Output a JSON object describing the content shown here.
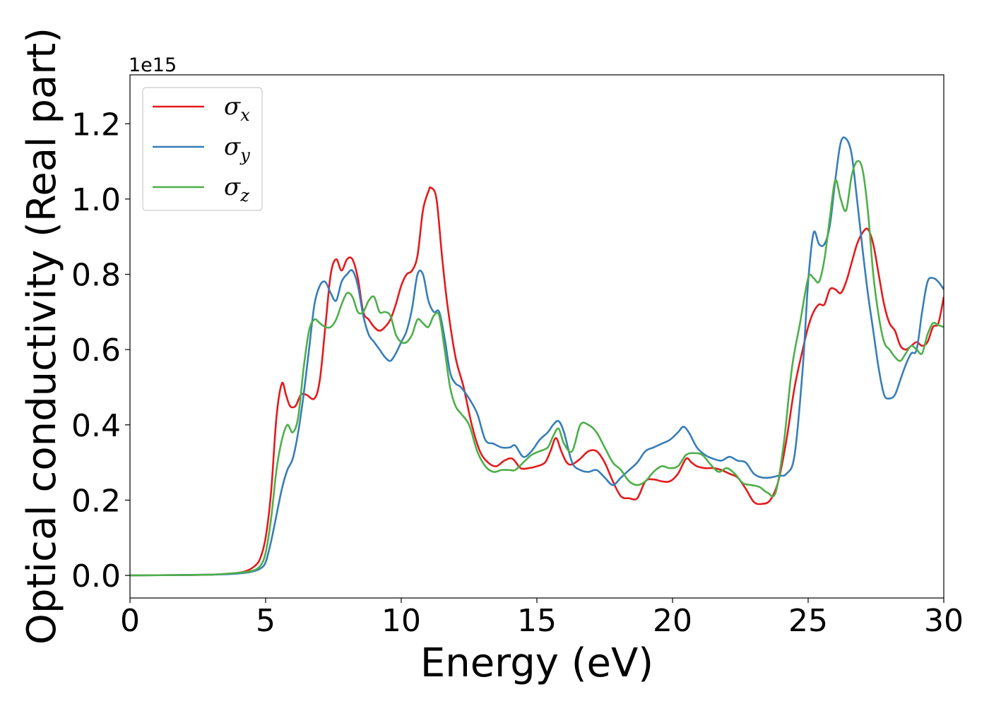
{
  "chart_data": {
    "type": "line",
    "title": "",
    "xlabel": "Energy (eV)",
    "ylabel": "Optical conductivity (Real part)",
    "y_offset_label": "1e15",
    "xlim": [
      0,
      30
    ],
    "ylim": [
      -0.06,
      1.33
    ],
    "xticks": [
      0,
      5,
      10,
      15,
      20,
      25,
      30
    ],
    "xtick_labels": [
      "0",
      "5",
      "10",
      "15",
      "20",
      "25",
      "30"
    ],
    "yticks": [
      0.0,
      0.2,
      0.4,
      0.6,
      0.8,
      1.0,
      1.2
    ],
    "ytick_labels": [
      "0.0",
      "0.2",
      "0.4",
      "0.6",
      "0.8",
      "1.0",
      "1.2"
    ],
    "grid": false,
    "legend_position": "top-left",
    "series": [
      {
        "name": "σx",
        "base": "σ",
        "sub": "x",
        "color": "#e41a1c",
        "x": [
          0,
          2,
          3,
          3.5,
          4,
          4.3,
          4.6,
          4.8,
          5.0,
          5.2,
          5.4,
          5.6,
          5.75,
          5.9,
          6.1,
          6.3,
          6.5,
          6.8,
          7.0,
          7.2,
          7.4,
          7.6,
          7.8,
          8.0,
          8.2,
          8.4,
          8.6,
          8.8,
          9.0,
          9.2,
          9.4,
          9.6,
          9.8,
          10.0,
          10.2,
          10.4,
          10.6,
          10.8,
          11.0,
          11.1,
          11.3,
          11.5,
          11.7,
          12.0,
          12.3,
          12.6,
          12.9,
          13.2,
          13.5,
          13.8,
          14.1,
          14.4,
          14.7,
          15.0,
          15.3,
          15.5,
          15.7,
          15.9,
          16.1,
          16.3,
          16.6,
          16.9,
          17.2,
          17.5,
          17.8,
          18.1,
          18.4,
          18.7,
          19.0,
          19.3,
          19.6,
          19.9,
          20.2,
          20.5,
          20.7,
          20.9,
          21.2,
          21.5,
          21.8,
          22.1,
          22.4,
          22.7,
          23.0,
          23.3,
          23.6,
          23.9,
          24.2,
          24.5,
          24.8,
          25.0,
          25.2,
          25.4,
          25.6,
          25.8,
          26.0,
          26.2,
          26.4,
          26.6,
          26.8,
          27.0,
          27.2,
          27.4,
          27.6,
          27.8,
          28.0,
          28.2,
          28.4,
          28.6,
          28.8,
          29.0,
          29.2,
          29.4,
          29.6,
          29.8,
          30.0
        ],
        "values": [
          0,
          0.001,
          0.002,
          0.004,
          0.007,
          0.012,
          0.025,
          0.045,
          0.1,
          0.22,
          0.42,
          0.51,
          0.48,
          0.45,
          0.45,
          0.48,
          0.48,
          0.47,
          0.52,
          0.66,
          0.8,
          0.84,
          0.81,
          0.84,
          0.84,
          0.79,
          0.7,
          0.68,
          0.66,
          0.65,
          0.66,
          0.68,
          0.72,
          0.77,
          0.8,
          0.81,
          0.85,
          0.97,
          1.02,
          1.03,
          1.0,
          0.85,
          0.72,
          0.58,
          0.5,
          0.4,
          0.33,
          0.3,
          0.29,
          0.305,
          0.31,
          0.285,
          0.285,
          0.29,
          0.3,
          0.33,
          0.365,
          0.33,
          0.3,
          0.295,
          0.31,
          0.33,
          0.33,
          0.3,
          0.25,
          0.21,
          0.205,
          0.205,
          0.25,
          0.255,
          0.25,
          0.25,
          0.27,
          0.31,
          0.3,
          0.29,
          0.285,
          0.285,
          0.28,
          0.27,
          0.26,
          0.23,
          0.195,
          0.19,
          0.2,
          0.25,
          0.36,
          0.5,
          0.6,
          0.66,
          0.7,
          0.72,
          0.72,
          0.76,
          0.76,
          0.75,
          0.78,
          0.83,
          0.88,
          0.91,
          0.92,
          0.88,
          0.8,
          0.72,
          0.67,
          0.65,
          0.61,
          0.6,
          0.61,
          0.62,
          0.61,
          0.62,
          0.66,
          0.67,
          0.74
        ]
      },
      {
        "name": "σy",
        "base": "σ",
        "sub": "y",
        "color": "#377eb8",
        "x": [
          0,
          2,
          3,
          3.5,
          4,
          4.5,
          4.8,
          5.0,
          5.2,
          5.4,
          5.6,
          5.8,
          6.0,
          6.2,
          6.4,
          6.6,
          6.8,
          7.0,
          7.2,
          7.4,
          7.6,
          7.8,
          8.0,
          8.2,
          8.4,
          8.6,
          8.8,
          9.0,
          9.2,
          9.4,
          9.6,
          9.8,
          10.0,
          10.2,
          10.4,
          10.6,
          10.8,
          11.0,
          11.2,
          11.4,
          11.6,
          11.8,
          12.0,
          12.2,
          12.5,
          12.8,
          13.1,
          13.4,
          13.7,
          14.0,
          14.2,
          14.5,
          14.8,
          15.1,
          15.4,
          15.6,
          15.8,
          16.0,
          16.3,
          16.6,
          16.9,
          17.2,
          17.5,
          17.8,
          18.1,
          18.4,
          18.7,
          19.0,
          19.3,
          19.6,
          19.9,
          20.2,
          20.4,
          20.6,
          20.9,
          21.2,
          21.5,
          21.8,
          22.1,
          22.4,
          22.7,
          23.0,
          23.3,
          23.6,
          23.9,
          24.2,
          24.5,
          24.8,
          25.0,
          25.2,
          25.4,
          25.6,
          25.8,
          26.0,
          26.2,
          26.4,
          26.6,
          26.8,
          27.0,
          27.2,
          27.4,
          27.6,
          27.8,
          28.0,
          28.2,
          28.4,
          28.6,
          28.8,
          29.0,
          29.2,
          29.4,
          29.6,
          29.8,
          30.0
        ],
        "values": [
          0,
          0.001,
          0.002,
          0.003,
          0.005,
          0.01,
          0.018,
          0.035,
          0.09,
          0.16,
          0.23,
          0.28,
          0.31,
          0.38,
          0.48,
          0.6,
          0.72,
          0.77,
          0.78,
          0.75,
          0.73,
          0.78,
          0.8,
          0.81,
          0.77,
          0.69,
          0.64,
          0.62,
          0.6,
          0.58,
          0.57,
          0.59,
          0.62,
          0.65,
          0.71,
          0.8,
          0.8,
          0.73,
          0.7,
          0.7,
          0.63,
          0.54,
          0.51,
          0.5,
          0.47,
          0.43,
          0.36,
          0.35,
          0.34,
          0.34,
          0.345,
          0.315,
          0.33,
          0.36,
          0.38,
          0.4,
          0.41,
          0.38,
          0.3,
          0.28,
          0.275,
          0.28,
          0.26,
          0.24,
          0.26,
          0.28,
          0.3,
          0.33,
          0.34,
          0.35,
          0.36,
          0.38,
          0.395,
          0.38,
          0.34,
          0.32,
          0.31,
          0.305,
          0.315,
          0.305,
          0.3,
          0.27,
          0.26,
          0.26,
          0.265,
          0.27,
          0.32,
          0.55,
          0.78,
          0.91,
          0.88,
          0.88,
          0.93,
          1.05,
          1.15,
          1.16,
          1.12,
          1.0,
          0.87,
          0.75,
          0.65,
          0.55,
          0.48,
          0.47,
          0.48,
          0.52,
          0.56,
          0.59,
          0.6,
          0.7,
          0.78,
          0.79,
          0.78,
          0.76
        ]
      },
      {
        "name": "σz",
        "base": "σ",
        "sub": "z",
        "color": "#4daf4a",
        "x": [
          0,
          2,
          3,
          3.5,
          4,
          4.5,
          4.8,
          5.0,
          5.2,
          5.4,
          5.6,
          5.8,
          6.0,
          6.2,
          6.4,
          6.6,
          6.8,
          7.0,
          7.2,
          7.4,
          7.6,
          7.8,
          8.0,
          8.2,
          8.4,
          8.6,
          8.8,
          9.0,
          9.2,
          9.4,
          9.6,
          9.8,
          10.0,
          10.2,
          10.4,
          10.6,
          10.8,
          11.0,
          11.2,
          11.4,
          11.6,
          11.8,
          12.0,
          12.2,
          12.5,
          12.8,
          13.1,
          13.4,
          13.7,
          14.0,
          14.2,
          14.5,
          14.8,
          15.1,
          15.4,
          15.6,
          15.8,
          16.0,
          16.3,
          16.6,
          16.9,
          17.2,
          17.5,
          17.8,
          18.1,
          18.4,
          18.7,
          19.0,
          19.3,
          19.6,
          19.9,
          20.2,
          20.5,
          20.8,
          21.1,
          21.4,
          21.7,
          22.0,
          22.3,
          22.6,
          22.9,
          23.2,
          23.5,
          23.8,
          24.1,
          24.4,
          24.7,
          25.0,
          25.2,
          25.4,
          25.6,
          25.8,
          26.0,
          26.2,
          26.4,
          26.6,
          26.8,
          27.0,
          27.2,
          27.4,
          27.6,
          27.8,
          28.0,
          28.2,
          28.4,
          28.6,
          28.8,
          29.0,
          29.2,
          29.4,
          29.6,
          29.8,
          30.0
        ],
        "values": [
          0,
          0.001,
          0.002,
          0.004,
          0.007,
          0.012,
          0.025,
          0.06,
          0.15,
          0.28,
          0.36,
          0.4,
          0.38,
          0.42,
          0.55,
          0.65,
          0.68,
          0.67,
          0.66,
          0.66,
          0.68,
          0.72,
          0.75,
          0.74,
          0.7,
          0.7,
          0.73,
          0.74,
          0.7,
          0.7,
          0.69,
          0.64,
          0.62,
          0.62,
          0.64,
          0.68,
          0.67,
          0.66,
          0.69,
          0.69,
          0.6,
          0.5,
          0.45,
          0.43,
          0.4,
          0.33,
          0.29,
          0.275,
          0.28,
          0.28,
          0.28,
          0.3,
          0.32,
          0.33,
          0.34,
          0.37,
          0.39,
          0.35,
          0.33,
          0.4,
          0.4,
          0.38,
          0.34,
          0.3,
          0.28,
          0.25,
          0.24,
          0.25,
          0.275,
          0.29,
          0.285,
          0.29,
          0.32,
          0.325,
          0.32,
          0.295,
          0.275,
          0.285,
          0.27,
          0.245,
          0.24,
          0.235,
          0.22,
          0.22,
          0.35,
          0.55,
          0.67,
          0.79,
          0.79,
          0.78,
          0.84,
          0.95,
          1.05,
          1.0,
          0.97,
          1.06,
          1.1,
          1.08,
          0.97,
          0.8,
          0.69,
          0.62,
          0.6,
          0.58,
          0.57,
          0.59,
          0.61,
          0.6,
          0.59,
          0.64,
          0.67,
          0.665,
          0.66
        ]
      }
    ]
  }
}
